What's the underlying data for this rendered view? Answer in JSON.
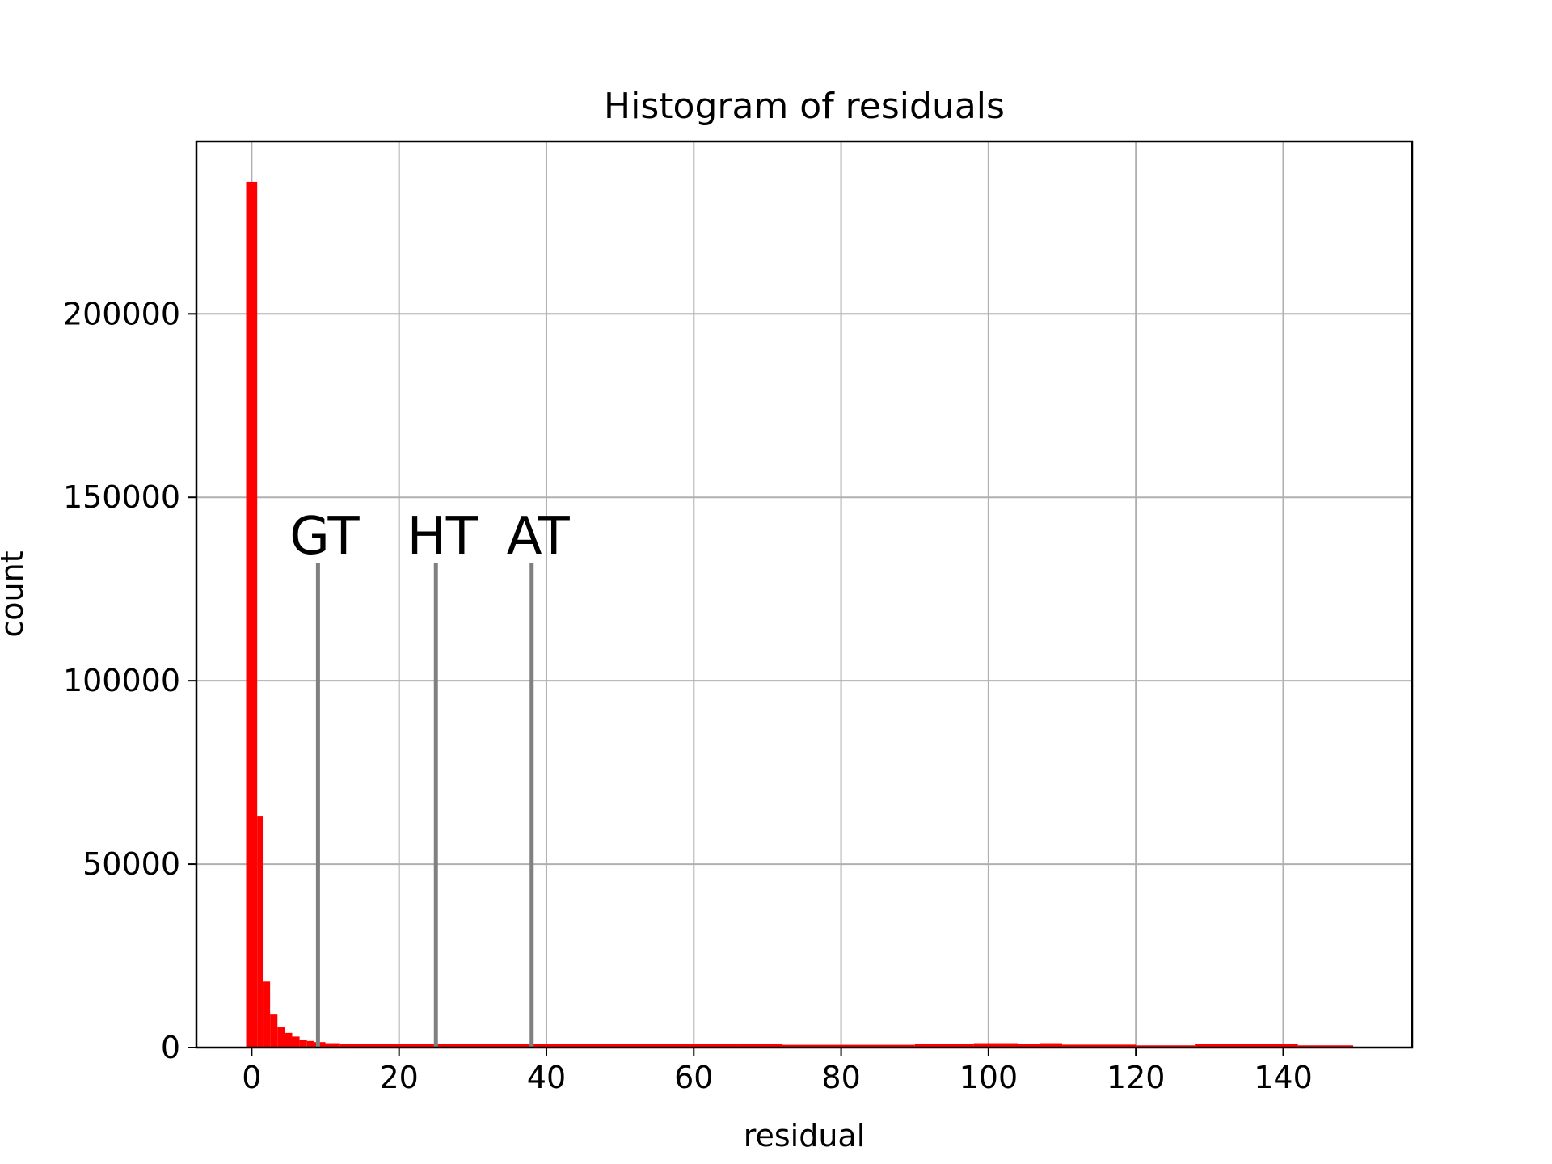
{
  "chart_data": {
    "type": "bar",
    "title": "Histogram of residuals",
    "xlabel": "residual",
    "ylabel": "count",
    "xlim": [
      -7.5,
      157.5
    ],
    "ylim": [
      0,
      247000
    ],
    "grid": true,
    "bar_color": "#ff0000",
    "line_color": "#808080",
    "x_ticks": [
      0,
      20,
      40,
      60,
      80,
      100,
      120,
      140
    ],
    "y_ticks": [
      0,
      50000,
      100000,
      150000,
      200000
    ],
    "bins": [
      {
        "x0": -0.75,
        "x1": 0.75,
        "count": 236000
      },
      {
        "x0": 0.75,
        "x1": 1.5,
        "count": 63000
      },
      {
        "x0": 1.5,
        "x1": 2.5,
        "count": 18000
      },
      {
        "x0": 2.5,
        "x1": 3.5,
        "count": 9000
      },
      {
        "x0": 3.5,
        "x1": 4.5,
        "count": 5500
      },
      {
        "x0": 4.5,
        "x1": 5.5,
        "count": 4000
      },
      {
        "x0": 5.5,
        "x1": 6.5,
        "count": 3000
      },
      {
        "x0": 6.5,
        "x1": 7.5,
        "count": 2200
      },
      {
        "x0": 7.5,
        "x1": 8.5,
        "count": 1800
      },
      {
        "x0": 8.5,
        "x1": 10,
        "count": 1500
      },
      {
        "x0": 10,
        "x1": 12,
        "count": 1200
      },
      {
        "x0": 12,
        "x1": 66,
        "count": 1000
      },
      {
        "x0": 66,
        "x1": 72,
        "count": 900
      },
      {
        "x0": 72,
        "x1": 90,
        "count": 750
      },
      {
        "x0": 90,
        "x1": 98,
        "count": 900
      },
      {
        "x0": 98,
        "x1": 104,
        "count": 1200
      },
      {
        "x0": 104,
        "x1": 107,
        "count": 900
      },
      {
        "x0": 107,
        "x1": 110,
        "count": 1200
      },
      {
        "x0": 110,
        "x1": 120,
        "count": 800
      },
      {
        "x0": 120,
        "x1": 128,
        "count": 600
      },
      {
        "x0": 128,
        "x1": 142,
        "count": 900
      },
      {
        "x0": 142,
        "x1": 149.5,
        "count": 600
      }
    ],
    "annotations": [
      {
        "label": "GT",
        "x": 9,
        "y_top": 132000
      },
      {
        "label": "HT",
        "x": 25,
        "y_top": 132000
      },
      {
        "label": "AT",
        "x": 38,
        "y_top": 132000
      }
    ]
  }
}
